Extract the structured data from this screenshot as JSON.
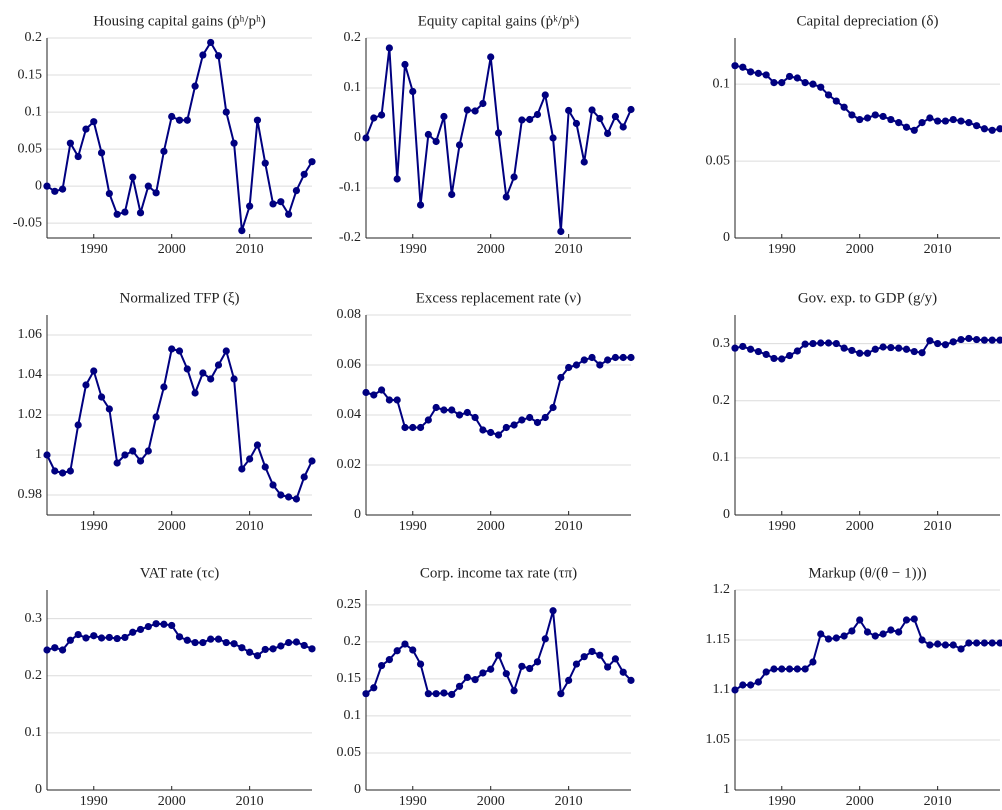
{
  "chart_data": [
    {
      "type": "line",
      "title": "Housing capital gains (ṗʰ/pʰ)",
      "x": [
        1984,
        1985,
        1986,
        1987,
        1988,
        1989,
        1990,
        1991,
        1992,
        1993,
        1994,
        1995,
        1996,
        1997,
        1998,
        1999,
        2000,
        2001,
        2002,
        2003,
        2004,
        2005,
        2006,
        2007,
        2008,
        2009,
        2010,
        2011,
        2012,
        2013,
        2014,
        2015,
        2016,
        2017,
        2018
      ],
      "series": [
        {
          "color": "#000080",
          "values": [
            0,
            -0.007,
            -0.004,
            0.058,
            0.04,
            0.077,
            0.087,
            0.045,
            -0.01,
            -0.038,
            -0.035,
            0.012,
            -0.036,
            0,
            -0.009,
            0.047,
            0.094,
            0.089,
            0.089,
            0.135,
            0.177,
            0.194,
            0.176,
            0.1,
            0.058,
            -0.06,
            -0.027,
            0.089,
            0.031,
            -0.024,
            -0.021,
            -0.038,
            -0.006,
            0.016,
            0.033
          ]
        }
      ],
      "xlim": [
        1984,
        2018
      ],
      "xticks": [
        1990,
        2000,
        2010
      ],
      "ylim": [
        -0.07,
        0.2
      ],
      "yticks": [
        -0.05,
        0,
        0.05,
        0.1,
        0.15,
        0.2
      ],
      "grid": true
    },
    {
      "type": "line",
      "title": "Equity capital gains (ṗᵏ/pᵏ)",
      "x": [
        1984,
        1985,
        1986,
        1987,
        1988,
        1989,
        1990,
        1991,
        1992,
        1993,
        1994,
        1995,
        1996,
        1997,
        1998,
        1999,
        2000,
        2001,
        2002,
        2003,
        2004,
        2005,
        2006,
        2007,
        2008,
        2009,
        2010,
        2011,
        2012,
        2013,
        2014,
        2015,
        2016,
        2017,
        2018
      ],
      "series": [
        {
          "color": "#000080",
          "values": [
            0,
            0.04,
            0.046,
            0.18,
            -0.082,
            0.147,
            0.093,
            -0.134,
            0.007,
            -0.007,
            0.043,
            -0.113,
            -0.014,
            0.056,
            0.054,
            0.069,
            0.162,
            0.01,
            -0.118,
            -0.078,
            0.036,
            0.037,
            0.047,
            0.086,
            0,
            -0.187,
            0.055,
            0.029,
            -0.048,
            0.056,
            0.039,
            0.009,
            0.043,
            0.022,
            0.057
          ]
        }
      ],
      "xlim": [
        1984,
        2018
      ],
      "xticks": [
        1990,
        2000,
        2010
      ],
      "ylim": [
        -0.2,
        0.2
      ],
      "yticks": [
        -0.2,
        -0.1,
        0,
        0.1,
        0.2
      ],
      "grid": true
    },
    {
      "type": "line",
      "title": "Capital depreciation (δ)",
      "x": [
        1984,
        1985,
        1986,
        1987,
        1988,
        1989,
        1990,
        1991,
        1992,
        1993,
        1994,
        1995,
        1996,
        1997,
        1998,
        1999,
        2000,
        2001,
        2002,
        2003,
        2004,
        2005,
        2006,
        2007,
        2008,
        2009,
        2010,
        2011,
        2012,
        2013,
        2014,
        2015,
        2016,
        2017,
        2018
      ],
      "series": [
        {
          "color": "#000080",
          "values": [
            0.112,
            0.111,
            0.108,
            0.107,
            0.106,
            0.101,
            0.101,
            0.105,
            0.104,
            0.101,
            0.1,
            0.098,
            0.093,
            0.089,
            0.085,
            0.08,
            0.077,
            0.078,
            0.08,
            0.079,
            0.077,
            0.075,
            0.072,
            0.07,
            0.075,
            0.078,
            0.076,
            0.076,
            0.077,
            0.076,
            0.075,
            0.073,
            0.071,
            0.07,
            0.071
          ]
        }
      ],
      "xlim": [
        1984,
        2018
      ],
      "xticks": [
        1990,
        2000,
        2010
      ],
      "ylim": [
        0,
        0.13
      ],
      "yticks": [
        0,
        0.05,
        0.1
      ],
      "grid": true
    },
    {
      "type": "line",
      "title": "Normalized TFP (ξ)",
      "x": [
        1984,
        1985,
        1986,
        1987,
        1988,
        1989,
        1990,
        1991,
        1992,
        1993,
        1994,
        1995,
        1996,
        1997,
        1998,
        1999,
        2000,
        2001,
        2002,
        2003,
        2004,
        2005,
        2006,
        2007,
        2008,
        2009,
        2010,
        2011,
        2012,
        2013,
        2014,
        2015,
        2016,
        2017,
        2018
      ],
      "series": [
        {
          "color": "#000080",
          "values": [
            1.0,
            0.992,
            0.991,
            0.992,
            1.015,
            1.035,
            1.042,
            1.029,
            1.023,
            0.996,
            1.0,
            1.002,
            0.997,
            1.002,
            1.019,
            1.034,
            1.053,
            1.052,
            1.043,
            1.031,
            1.041,
            1.038,
            1.045,
            1.052,
            1.038,
            0.993,
            0.998,
            1.005,
            0.994,
            0.985,
            0.98,
            0.979,
            0.978,
            0.989,
            0.997
          ]
        }
      ],
      "xlim": [
        1984,
        2018
      ],
      "xticks": [
        1990,
        2000,
        2010
      ],
      "ylim": [
        0.97,
        1.07
      ],
      "yticks": [
        0.98,
        1,
        1.02,
        1.04,
        1.06
      ],
      "grid": true
    },
    {
      "type": "line",
      "title": "Excess replacement rate (ν)",
      "x": [
        1984,
        1985,
        1986,
        1987,
        1988,
        1989,
        1990,
        1991,
        1992,
        1993,
        1994,
        1995,
        1996,
        1997,
        1998,
        1999,
        2000,
        2001,
        2002,
        2003,
        2004,
        2005,
        2006,
        2007,
        2008,
        2009,
        2010,
        2011,
        2012,
        2013,
        2014,
        2015,
        2016,
        2017,
        2018
      ],
      "series": [
        {
          "color": "#000080",
          "values": [
            0.049,
            0.048,
            0.05,
            0.046,
            0.046,
            0.035,
            0.035,
            0.035,
            0.038,
            0.043,
            0.042,
            0.042,
            0.04,
            0.041,
            0.039,
            0.034,
            0.033,
            0.032,
            0.035,
            0.036,
            0.038,
            0.039,
            0.037,
            0.039,
            0.043,
            0.055,
            0.059,
            0.06,
            0.062,
            0.063,
            0.06,
            0.062,
            0.063,
            0.063,
            0.063
          ]
        }
      ],
      "xlim": [
        1984,
        2018
      ],
      "xticks": [
        1990,
        2000,
        2010
      ],
      "ylim": [
        0,
        0.08
      ],
      "yticks": [
        0,
        0.02,
        0.04,
        0.06,
        0.08
      ],
      "grid": true
    },
    {
      "type": "line",
      "title": "Gov. exp. to GDP (g/y)",
      "x": [
        1984,
        1985,
        1986,
        1987,
        1988,
        1989,
        1990,
        1991,
        1992,
        1993,
        1994,
        1995,
        1996,
        1997,
        1998,
        1999,
        2000,
        2001,
        2002,
        2003,
        2004,
        2005,
        2006,
        2007,
        2008,
        2009,
        2010,
        2011,
        2012,
        2013,
        2014,
        2015,
        2016,
        2017,
        2018
      ],
      "series": [
        {
          "color": "#000080",
          "values": [
            0.292,
            0.295,
            0.29,
            0.286,
            0.281,
            0.274,
            0.273,
            0.279,
            0.287,
            0.299,
            0.3,
            0.301,
            0.301,
            0.3,
            0.292,
            0.288,
            0.283,
            0.283,
            0.29,
            0.294,
            0.293,
            0.292,
            0.29,
            0.286,
            0.284,
            0.305,
            0.3,
            0.298,
            0.303,
            0.307,
            0.309,
            0.307,
            0.306,
            0.306,
            0.306
          ]
        }
      ],
      "xlim": [
        1984,
        2018
      ],
      "xticks": [
        1990,
        2000,
        2010
      ],
      "ylim": [
        0,
        0.35
      ],
      "yticks": [
        0,
        0.1,
        0.2,
        0.3
      ],
      "grid": true
    },
    {
      "type": "line",
      "title": "VAT rate (τc)",
      "x": [
        1984,
        1985,
        1986,
        1987,
        1988,
        1989,
        1990,
        1991,
        1992,
        1993,
        1994,
        1995,
        1996,
        1997,
        1998,
        1999,
        2000,
        2001,
        2002,
        2003,
        2004,
        2005,
        2006,
        2007,
        2008,
        2009,
        2010,
        2011,
        2012,
        2013,
        2014,
        2015,
        2016,
        2017,
        2018
      ],
      "series": [
        {
          "color": "#000080",
          "values": [
            0.245,
            0.249,
            0.245,
            0.262,
            0.272,
            0.266,
            0.27,
            0.266,
            0.267,
            0.265,
            0.267,
            0.276,
            0.281,
            0.286,
            0.291,
            0.29,
            0.288,
            0.268,
            0.262,
            0.258,
            0.258,
            0.264,
            0.264,
            0.258,
            0.256,
            0.249,
            0.241,
            0.235,
            0.246,
            0.247,
            0.252,
            0.258,
            0.259,
            0.253,
            0.247
          ]
        }
      ],
      "xlim": [
        1984,
        2018
      ],
      "xticks": [
        1990,
        2000,
        2010
      ],
      "ylim": [
        0,
        0.35
      ],
      "yticks": [
        0,
        0.1,
        0.2,
        0.3
      ],
      "grid": true
    },
    {
      "type": "line",
      "title": "Corp. income tax rate (τπ)",
      "x": [
        1984,
        1985,
        1986,
        1987,
        1988,
        1989,
        1990,
        1991,
        1992,
        1993,
        1994,
        1995,
        1996,
        1997,
        1998,
        1999,
        2000,
        2001,
        2002,
        2003,
        2004,
        2005,
        2006,
        2007,
        2008,
        2009,
        2010,
        2011,
        2012,
        2013,
        2014,
        2015,
        2016,
        2017,
        2018
      ],
      "series": [
        {
          "color": "#000080",
          "values": [
            0.13,
            0.138,
            0.168,
            0.176,
            0.188,
            0.197,
            0.189,
            0.17,
            0.13,
            0.13,
            0.131,
            0.129,
            0.14,
            0.152,
            0.149,
            0.158,
            0.163,
            0.182,
            0.157,
            0.134,
            0.167,
            0.164,
            0.173,
            0.204,
            0.242,
            0.13,
            0.148,
            0.17,
            0.18,
            0.187,
            0.182,
            0.166,
            0.177,
            0.159,
            0.148
          ]
        }
      ],
      "xlim": [
        1984,
        2018
      ],
      "xticks": [
        1990,
        2000,
        2010
      ],
      "ylim": [
        0,
        0.27
      ],
      "yticks": [
        0,
        0.05,
        0.1,
        0.15,
        0.2,
        0.25
      ],
      "grid": true
    },
    {
      "type": "line",
      "title": "Markup (θ/(θ − 1)))",
      "x": [
        1984,
        1985,
        1986,
        1987,
        1988,
        1989,
        1990,
        1991,
        1992,
        1993,
        1994,
        1995,
        1996,
        1997,
        1998,
        1999,
        2000,
        2001,
        2002,
        2003,
        2004,
        2005,
        2006,
        2007,
        2008,
        2009,
        2010,
        2011,
        2012,
        2013,
        2014,
        2015,
        2016,
        2017,
        2018
      ],
      "series": [
        {
          "color": "#000080",
          "values": [
            1.1,
            1.105,
            1.105,
            1.108,
            1.118,
            1.121,
            1.121,
            1.121,
            1.121,
            1.121,
            1.128,
            1.156,
            1.151,
            1.152,
            1.154,
            1.159,
            1.17,
            1.158,
            1.154,
            1.156,
            1.16,
            1.158,
            1.17,
            1.171,
            1.15,
            1.145,
            1.146,
            1.145,
            1.145,
            1.141,
            1.147,
            1.147,
            1.147,
            1.147,
            1.147
          ]
        }
      ],
      "xlim": [
        1984,
        2018
      ],
      "xticks": [
        1990,
        2000,
        2010
      ],
      "ylim": [
        1,
        1.2
      ],
      "yticks": [
        1,
        1.05,
        1.1,
        1.15,
        1.2
      ],
      "grid": true
    }
  ]
}
